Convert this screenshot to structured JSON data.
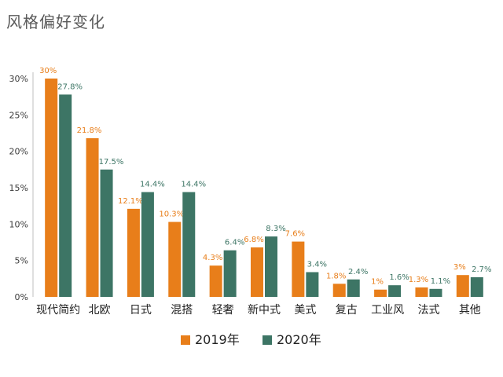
{
  "chart_data": {
    "type": "bar",
    "title": "风格偏好变化",
    "categories": [
      "现代简约",
      "北欧",
      "日式",
      "混搭",
      "轻奢",
      "新中式",
      "美式",
      "复古",
      "工业风",
      "法式",
      "其他"
    ],
    "series": [
      {
        "name": "2019年",
        "color": "#E87E1A",
        "values": [
          30,
          21.8,
          12.1,
          10.3,
          4.3,
          6.8,
          7.6,
          1.8,
          1,
          1.3,
          3
        ],
        "labels": [
          "30%",
          "21.8%",
          "12.1%",
          "10.3%",
          "4.3%",
          "6.8%",
          "7.6%",
          "1.8%",
          "1%",
          "1.3%",
          "3%"
        ]
      },
      {
        "name": "2020年",
        "color": "#3D7565",
        "values": [
          27.8,
          17.5,
          14.4,
          14.4,
          6.4,
          8.3,
          3.4,
          2.4,
          1.6,
          1.1,
          2.7
        ],
        "labels": [
          "27.8%",
          "17.5%",
          "14.4%",
          "14.4%",
          "6.4%",
          "8.3%",
          "3.4%",
          "2.4%",
          "1.6%",
          "1.1%",
          "2.7%"
        ]
      }
    ],
    "ylim": [
      0,
      30
    ],
    "yticks": [
      "0%",
      "5%",
      "10%",
      "15%",
      "20%",
      "25%",
      "30%"
    ],
    "ytick_values": [
      0,
      5,
      10,
      15,
      20,
      25,
      30
    ],
    "label_color": "#E87E1A",
    "label_color_2": "#3D7565",
    "legend_position": "bottom-center",
    "grid": false
  }
}
